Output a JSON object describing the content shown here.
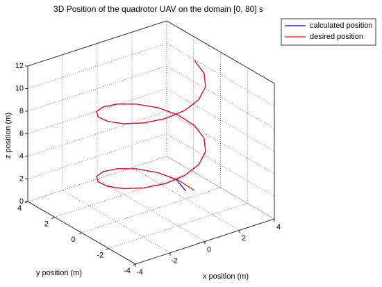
{
  "chart_data": {
    "type": "line3d",
    "title": "3D Position of the quadrotor UAV on the domain [0, 80] s",
    "x_label": "x position (m)",
    "y_label": "y position (m)",
    "z_label": "z position (m)",
    "xlim": [
      -4,
      4
    ],
    "ylim": [
      -4,
      4
    ],
    "zlim": [
      0,
      12
    ],
    "xticks": [
      -4,
      -2,
      0,
      2,
      4
    ],
    "yticks": [
      -4,
      -2,
      0,
      2,
      4
    ],
    "zticks": [
      0,
      2,
      4,
      6,
      8,
      10,
      12
    ],
    "grid": true,
    "legend_position": "upper right",
    "series": [
      {
        "name": "calculated position",
        "color": "#0000ff",
        "x": [
          2.0,
          2.2,
          1.77,
          0.96,
          0,
          -0.96,
          -1.77,
          -2.31,
          -2.5,
          -2.31,
          -1.77,
          -0.96,
          0,
          0.96,
          1.77,
          2.31,
          2.5,
          2.31,
          1.77,
          0.96,
          0,
          -0.96,
          -1.77,
          -2.31,
          -2.5,
          -2.31,
          -1.77,
          -0.96,
          0,
          0.96,
          1.77,
          2.31,
          2.5
        ],
        "y": [
          0,
          0.96,
          1.77,
          2.31,
          2.5,
          2.31,
          1.77,
          0.96,
          0,
          -0.96,
          -1.77,
          -2.31,
          -2.5,
          -2.31,
          -1.77,
          -0.96,
          0,
          0.96,
          1.77,
          2.31,
          2.5,
          2.31,
          1.77,
          0.96,
          0,
          -0.96,
          -1.77,
          -2.31,
          -2.5,
          -2.31,
          -1.77,
          -0.96,
          0
        ],
        "z": [
          0.7,
          0.95,
          1.22,
          1.58,
          1.94,
          2.3,
          2.66,
          3.01,
          3.37,
          3.73,
          4.09,
          4.45,
          4.81,
          5.17,
          5.53,
          5.89,
          6.25,
          6.61,
          6.97,
          7.32,
          7.68,
          8.04,
          8.4,
          8.76,
          9.12,
          9.48,
          9.84,
          10.2,
          10.56,
          10.92,
          11.28,
          11.63,
          12.0
        ]
      },
      {
        "name": "desired position",
        "color": "#ff0000",
        "x": [
          2.5,
          2.31,
          1.77,
          0.96,
          0,
          -0.96,
          -1.77,
          -2.31,
          -2.5,
          -2.31,
          -1.77,
          -0.96,
          0,
          0.96,
          1.77,
          2.31,
          2.5,
          2.31,
          1.77,
          0.96,
          0,
          -0.96,
          -1.77,
          -2.31,
          -2.5,
          -2.31,
          -1.77,
          -0.96,
          0,
          0.96,
          1.77,
          2.31,
          2.5
        ],
        "y": [
          0,
          0.96,
          1.77,
          2.31,
          2.5,
          2.31,
          1.77,
          0.96,
          0,
          -0.96,
          -1.77,
          -2.31,
          -2.5,
          -2.31,
          -1.77,
          -0.96,
          0,
          0.96,
          1.77,
          2.31,
          2.5,
          2.31,
          1.77,
          0.96,
          0,
          -0.96,
          -1.77,
          -2.31,
          -2.5,
          -2.31,
          -1.77,
          -0.96,
          0
        ],
        "z": [
          0.5,
          0.86,
          1.22,
          1.58,
          1.94,
          2.3,
          2.66,
          3.01,
          3.37,
          3.73,
          4.09,
          4.45,
          4.81,
          5.17,
          5.53,
          5.89,
          6.25,
          6.61,
          6.97,
          7.32,
          7.68,
          8.04,
          8.4,
          8.76,
          9.12,
          9.48,
          9.84,
          10.2,
          10.56,
          10.92,
          11.28,
          11.63,
          12.0
        ]
      }
    ]
  }
}
